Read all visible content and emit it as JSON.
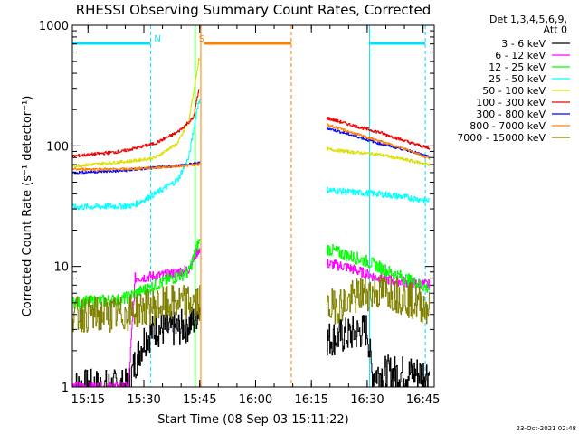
{
  "chart_data": {
    "type": "line",
    "title": "RHESSI Observing Summary Count Rates, Corrected",
    "xlabel": "Start Time (08-Sep-03 15:11:22)",
    "ylabel": "Corrected Count Rate (s⁻¹ detector⁻¹)",
    "y_scale": "log",
    "ylim": [
      1,
      1000
    ],
    "xlim_minutes": [
      15.18,
      16.8
    ],
    "x_ticks": [
      {
        "label": "15:15",
        "value": 15.25
      },
      {
        "label": "15:30",
        "value": 15.5
      },
      {
        "label": "15:45",
        "value": 15.75
      },
      {
        "label": "16:00",
        "value": 16.0
      },
      {
        "label": "16:15",
        "value": 16.25
      },
      {
        "label": "16:30",
        "value": 16.5
      },
      {
        "label": "16:45",
        "value": 16.75
      }
    ],
    "y_ticks": [
      {
        "label": "1",
        "value": 1
      },
      {
        "label": "10",
        "value": 10
      },
      {
        "label": "100",
        "value": 100
      },
      {
        "label": "1000",
        "value": 1000
      }
    ],
    "legend": {
      "position": "outside-right",
      "header": [
        "Det 1,3,4,5,6,9,",
        "Att 0"
      ],
      "entries": [
        {
          "label": "3 - 6 keV",
          "color": "#000000"
        },
        {
          "label": "6 - 12 keV",
          "color": "#ff00ff"
        },
        {
          "label": "12 - 25 keV",
          "color": "#00ff00"
        },
        {
          "label": "25 - 50 keV",
          "color": "#00ffff"
        },
        {
          "label": "50 - 100 keV",
          "color": "#dddd00"
        },
        {
          "label": "100 - 300 keV",
          "color": "#ee0000"
        },
        {
          "label": "300 - 800 keV",
          "color": "#0000ff"
        },
        {
          "label": "800 - 7000 keV",
          "color": "#ff8000"
        },
        {
          "label": "7000 - 15000 keV",
          "color": "#808000"
        }
      ]
    },
    "annotations": [
      {
        "text": "N",
        "x": 15.53,
        "color": "#00e0ff"
      },
      {
        "text": "S",
        "x": 15.73,
        "color": "#ff8000"
      }
    ],
    "segments": [
      {
        "name": "Night (N)",
        "start": 15.18,
        "end": 15.53,
        "color": "#00e0ff"
      },
      {
        "name": "SAA (S)",
        "start": 15.77,
        "end": 16.16,
        "color": "#ff8000"
      },
      {
        "name": "Night (N)",
        "start": 16.51,
        "end": 16.76,
        "color": "#00e0ff"
      }
    ],
    "vlines": [
      {
        "x": 15.53,
        "color": "#00e0ff",
        "dashed": true
      },
      {
        "x": 15.73,
        "color": "#00ff00",
        "dashed": false
      },
      {
        "x": 15.755,
        "color": "#ff8000",
        "dashed": false
      },
      {
        "x": 16.16,
        "color": "#ff8000",
        "dashed": true
      },
      {
        "x": 16.51,
        "color": "#00e0ff",
        "dashed": false
      },
      {
        "x": 16.76,
        "color": "#00e0ff",
        "dashed": true
      }
    ],
    "series": [
      {
        "name": "3 - 6 keV",
        "color": "#000000",
        "noise": 0.35,
        "points": [
          [
            15.18,
            1.0
          ],
          [
            15.43,
            1.0
          ],
          [
            15.46,
            1.6
          ],
          [
            15.5,
            2.5
          ],
          [
            15.55,
            3.0
          ],
          [
            15.65,
            3.0
          ],
          [
            15.72,
            3.5
          ],
          [
            15.745,
            4.5
          ],
          [
            16.32,
            2.5
          ],
          [
            16.45,
            2.8
          ],
          [
            16.5,
            3.0
          ],
          [
            16.52,
            1.3
          ],
          [
            16.78,
            1.3
          ]
        ]
      },
      {
        "name": "6 - 12 keV",
        "color": "#ff00ff",
        "noise": 0.1,
        "points": [
          [
            15.18,
            1.0
          ],
          [
            15.43,
            1.0
          ],
          [
            15.46,
            8.0
          ],
          [
            15.6,
            8.5
          ],
          [
            15.7,
            9.5
          ],
          [
            15.745,
            14
          ],
          [
            16.32,
            10.5
          ],
          [
            16.4,
            10.0
          ],
          [
            16.47,
            9.0
          ],
          [
            16.55,
            8.0
          ],
          [
            16.78,
            7.0
          ]
        ]
      },
      {
        "name": "12 - 25 keV",
        "color": "#00ff00",
        "noise": 0.12,
        "points": [
          [
            15.18,
            5.0
          ],
          [
            15.4,
            5.3
          ],
          [
            15.55,
            7.0
          ],
          [
            15.7,
            9.0
          ],
          [
            15.745,
            16
          ],
          [
            16.32,
            14
          ],
          [
            16.4,
            12.5
          ],
          [
            16.5,
            11.0
          ],
          [
            16.6,
            9.0
          ],
          [
            16.78,
            6.5
          ]
        ]
      },
      {
        "name": "25 - 50 keV",
        "color": "#00ffff",
        "noise": 0.06,
        "points": [
          [
            15.18,
            31
          ],
          [
            15.45,
            32
          ],
          [
            15.55,
            40
          ],
          [
            15.65,
            52
          ],
          [
            15.7,
            80
          ],
          [
            15.745,
            240
          ],
          [
            16.32,
            43
          ],
          [
            16.45,
            41
          ],
          [
            16.55,
            40
          ],
          [
            16.65,
            38
          ],
          [
            16.78,
            35
          ]
        ]
      },
      {
        "name": "50 - 100 keV",
        "color": "#dddd00",
        "noise": 0.03,
        "points": [
          [
            15.18,
            68
          ],
          [
            15.45,
            75
          ],
          [
            15.55,
            80
          ],
          [
            15.65,
            105
          ],
          [
            15.7,
            160
          ],
          [
            15.745,
            520
          ],
          [
            16.32,
            94
          ],
          [
            16.45,
            88
          ],
          [
            16.55,
            85
          ],
          [
            16.65,
            78
          ],
          [
            16.78,
            70
          ]
        ]
      },
      {
        "name": "100 - 300 keV",
        "color": "#ee0000",
        "noise": 0.03,
        "points": [
          [
            15.18,
            82
          ],
          [
            15.4,
            90
          ],
          [
            15.55,
            105
          ],
          [
            15.65,
            130
          ],
          [
            15.72,
            170
          ],
          [
            15.745,
            290
          ],
          [
            16.32,
            170
          ],
          [
            16.45,
            145
          ],
          [
            16.55,
            130
          ],
          [
            16.7,
            105
          ],
          [
            16.78,
            95
          ]
        ]
      },
      {
        "name": "300 - 800 keV",
        "color": "#0000ff",
        "noise": 0.025,
        "points": [
          [
            15.18,
            60
          ],
          [
            15.4,
            62
          ],
          [
            15.55,
            66
          ],
          [
            15.7,
            70
          ],
          [
            15.745,
            72
          ],
          [
            16.32,
            140
          ],
          [
            16.45,
            120
          ],
          [
            16.55,
            105
          ],
          [
            16.7,
            90
          ],
          [
            16.78,
            80
          ]
        ]
      },
      {
        "name": "800 - 7000 keV",
        "color": "#ff8000",
        "noise": 0.025,
        "points": [
          [
            15.18,
            64
          ],
          [
            15.4,
            64
          ],
          [
            15.55,
            66
          ],
          [
            15.7,
            69
          ],
          [
            15.745,
            70
          ],
          [
            16.32,
            150
          ],
          [
            16.45,
            125
          ],
          [
            16.55,
            110
          ],
          [
            16.7,
            90
          ],
          [
            16.78,
            78
          ]
        ]
      },
      {
        "name": "7000 - 15000 keV",
        "color": "#808000",
        "noise": 0.35,
        "points": [
          [
            15.18,
            4.0
          ],
          [
            15.4,
            4.0
          ],
          [
            15.5,
            4.5
          ],
          [
            15.65,
            5.0
          ],
          [
            15.745,
            5.0
          ],
          [
            16.32,
            4.5
          ],
          [
            16.4,
            5.0
          ],
          [
            16.48,
            6.0
          ],
          [
            16.6,
            6.2
          ],
          [
            16.78,
            4.5
          ]
        ]
      }
    ]
  },
  "footer": {
    "timestamp": "23-Oct-2021 02:48"
  }
}
